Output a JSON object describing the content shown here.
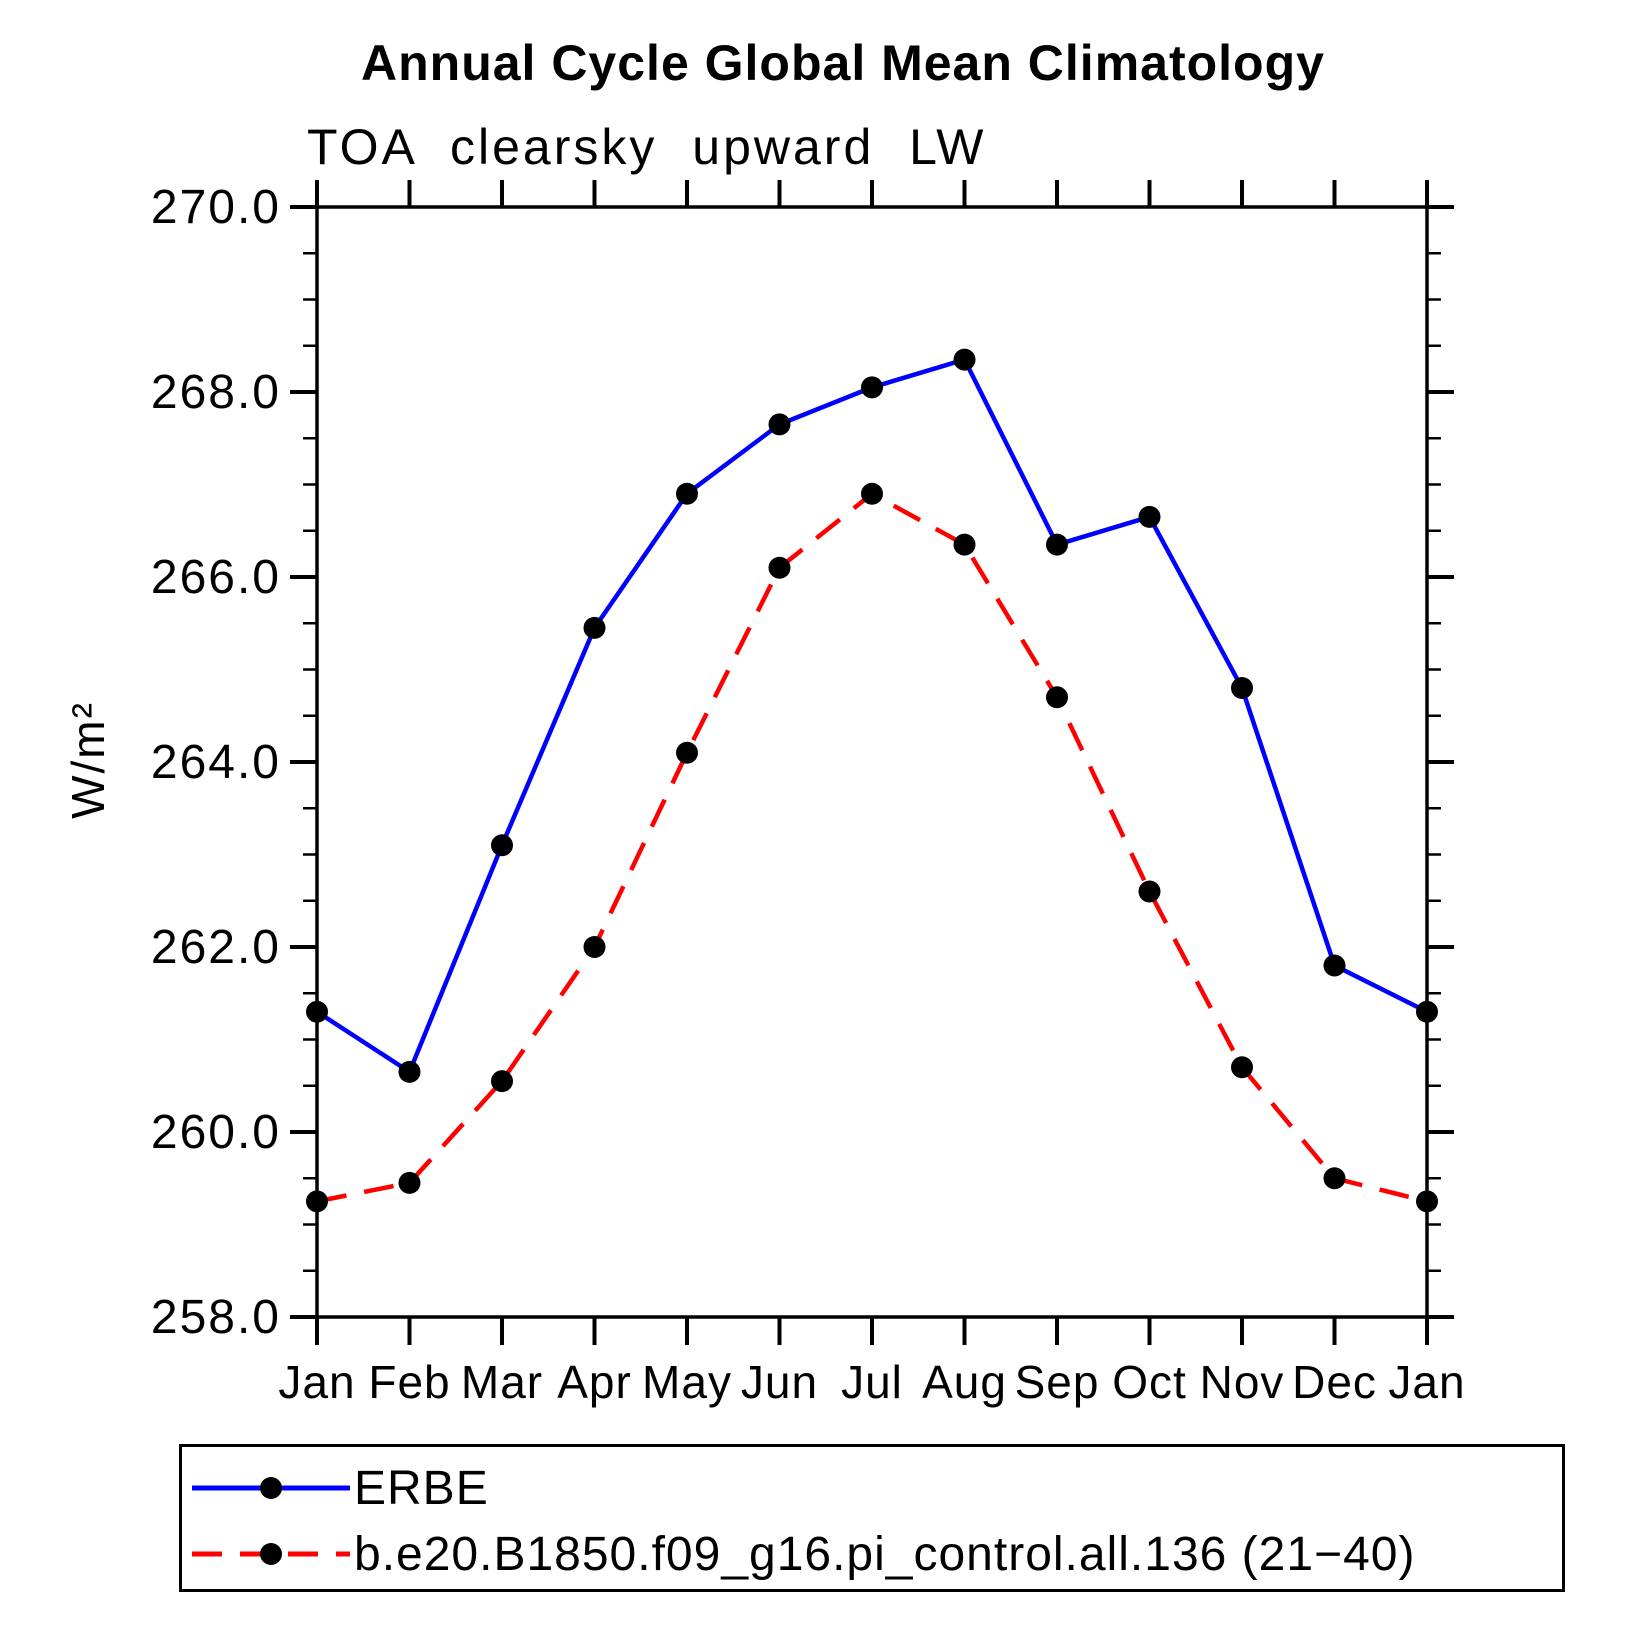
{
  "chart_data": {
    "type": "line",
    "title": "Annual Cycle Global Mean Climatology",
    "subtitle": "TOA clearsky upward LW",
    "ylabel": "W/m²",
    "xlabel": "",
    "ylim": [
      258.0,
      270.0
    ],
    "y_major_step": 2.0,
    "y_minor_step": 0.5,
    "grid": false,
    "frame": "box-with-outward-ticks",
    "legend_position": "bottom-left-boxed",
    "y_ticklabels": [
      "270.0",
      "268.0",
      "266.0",
      "264.0",
      "262.0",
      "260.0",
      "258.0"
    ],
    "x_ticklabels": [
      "Jan",
      "Feb",
      "Mar",
      "Apr",
      "May",
      "Jun",
      "Jul",
      "Aug",
      "Sep",
      "Oct",
      "Nov",
      "Dec",
      "Jan"
    ],
    "series": [
      {
        "name": "ERBE",
        "color": "#0000ff",
        "line_style": "solid",
        "marker": "filled-circle",
        "marker_color": "#000000",
        "values": [
          261.3,
          260.65,
          263.1,
          265.45,
          266.9,
          267.65,
          268.05,
          268.35,
          266.35,
          266.65,
          264.8,
          261.8,
          261.3
        ]
      },
      {
        "name": "b.e20.B1850.f09_g16.pi_control.all.136 (21−40)",
        "color": "#ff0000",
        "line_style": "dashed",
        "marker": "filled-circle",
        "marker_color": "#000000",
        "values": [
          259.25,
          259.45,
          260.55,
          262.0,
          264.1,
          266.1,
          266.9,
          266.35,
          264.7,
          262.6,
          260.7,
          259.5,
          259.25
        ]
      }
    ]
  }
}
